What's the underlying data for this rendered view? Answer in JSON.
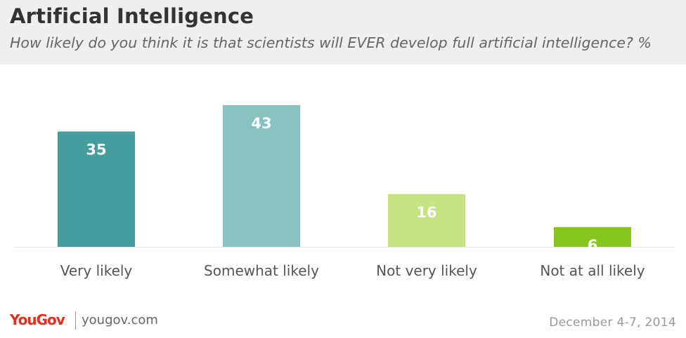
{
  "header": {
    "title": "Artificial Intelligence",
    "subtitle": "How likely do you think it is that scientists will EVER develop full artificial intelligence? %"
  },
  "chart_data": {
    "type": "bar",
    "title": "Artificial Intelligence",
    "subtitle": "How likely do you think it is that scientists will EVER develop full artificial intelligence? %",
    "categories": [
      "Very likely",
      "Somewhat likely",
      "Not very likely",
      "Not at all likely"
    ],
    "values": [
      35,
      43,
      16,
      6
    ],
    "colors": [
      "#459d9e",
      "#88c1c1",
      "#c5e383",
      "#88c61e"
    ],
    "xlabel": "",
    "ylabel": "",
    "ylim": [
      0,
      43
    ],
    "grid": false,
    "legend": "none",
    "data_labels": true
  },
  "footer": {
    "logo": "YouGov",
    "url": "yougov.com",
    "date": "December 4-7, 2014"
  }
}
